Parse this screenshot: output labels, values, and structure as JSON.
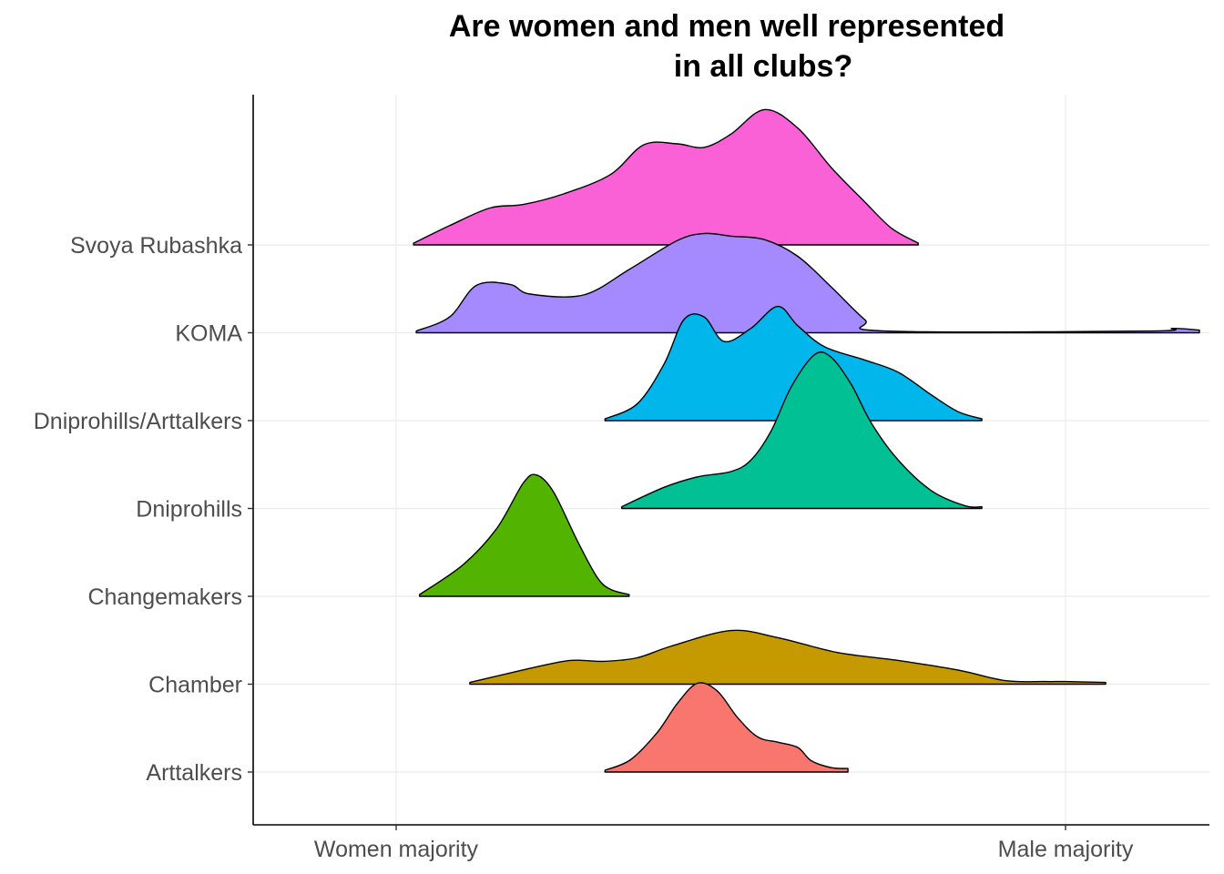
{
  "chart_data": {
    "type": "ridgeline-density",
    "title_lines": [
      "Are women and men well represented",
      "in all clubs?"
    ],
    "xlabel": "",
    "ylabel": "",
    "x_tick_labels": [
      "Women majority",
      "Male majority"
    ],
    "xlim": [
      -0.2,
      1.2
    ],
    "grid": true,
    "legend": "none",
    "categories": [
      "Arttalkers",
      "Chamber",
      "Changemakers",
      "Dniprohills",
      "Dniprohills/Arttalkers",
      "KOMA",
      "Svoya Rubashka"
    ],
    "series": [
      {
        "name": "Arttalkers",
        "color": "#F8766D",
        "curve": [
          [
            0.312,
            0.02
          ],
          [
            0.35,
            0.14
          ],
          [
            0.39,
            0.45
          ],
          [
            0.42,
            0.78
          ],
          [
            0.45,
            1.01
          ],
          [
            0.48,
            0.92
          ],
          [
            0.51,
            0.62
          ],
          [
            0.54,
            0.4
          ],
          [
            0.57,
            0.34
          ],
          [
            0.6,
            0.28
          ],
          [
            0.62,
            0.13
          ],
          [
            0.65,
            0.05
          ],
          [
            0.675,
            0.04
          ]
        ]
      },
      {
        "name": "Chamber",
        "color": "#C49A00",
        "curve": [
          [
            0.11,
            0.02
          ],
          [
            0.2,
            0.18
          ],
          [
            0.26,
            0.27
          ],
          [
            0.31,
            0.26
          ],
          [
            0.36,
            0.3
          ],
          [
            0.41,
            0.43
          ],
          [
            0.5,
            0.61
          ],
          [
            0.57,
            0.53
          ],
          [
            0.66,
            0.36
          ],
          [
            0.75,
            0.27
          ],
          [
            0.84,
            0.16
          ],
          [
            0.91,
            0.04
          ],
          [
            0.97,
            0.03
          ],
          [
            1.0,
            0.03
          ],
          [
            1.06,
            0.02
          ]
        ]
      },
      {
        "name": "Changemakers",
        "color": "#53B400",
        "curve": [
          [
            0.035,
            0.02
          ],
          [
            0.1,
            0.36
          ],
          [
            0.15,
            0.77
          ],
          [
            0.19,
            1.29
          ],
          [
            0.21,
            1.38
          ],
          [
            0.235,
            1.19
          ],
          [
            0.27,
            0.64
          ],
          [
            0.3,
            0.22
          ],
          [
            0.32,
            0.08
          ],
          [
            0.348,
            0.02
          ]
        ]
      },
      {
        "name": "Dniprohills",
        "color": "#00C094",
        "curve": [
          [
            0.337,
            0.02
          ],
          [
            0.4,
            0.24
          ],
          [
            0.45,
            0.36
          ],
          [
            0.5,
            0.42
          ],
          [
            0.53,
            0.55
          ],
          [
            0.56,
            0.88
          ],
          [
            0.59,
            1.38
          ],
          [
            0.625,
            1.75
          ],
          [
            0.65,
            1.72
          ],
          [
            0.68,
            1.41
          ],
          [
            0.71,
            0.97
          ],
          [
            0.75,
            0.55
          ],
          [
            0.8,
            0.2
          ],
          [
            0.85,
            0.03
          ],
          [
            0.875,
            0.02
          ]
        ]
      },
      {
        "name": "Dniprohills/Arttalkers",
        "color": "#00B6EB",
        "curve": [
          [
            0.312,
            0.02
          ],
          [
            0.36,
            0.19
          ],
          [
            0.4,
            0.64
          ],
          [
            0.43,
            1.15
          ],
          [
            0.46,
            1.18
          ],
          [
            0.49,
            0.9
          ],
          [
            0.53,
            1.05
          ],
          [
            0.57,
            1.3
          ],
          [
            0.6,
            1.08
          ],
          [
            0.64,
            0.84
          ],
          [
            0.7,
            0.69
          ],
          [
            0.75,
            0.55
          ],
          [
            0.8,
            0.29
          ],
          [
            0.84,
            0.1
          ],
          [
            0.875,
            0.02
          ]
        ]
      },
      {
        "name": "KOMA",
        "color": "#A58AFF",
        "curve": [
          [
            0.03,
            0.02
          ],
          [
            0.08,
            0.18
          ],
          [
            0.12,
            0.54
          ],
          [
            0.17,
            0.55
          ],
          [
            0.2,
            0.44
          ],
          [
            0.28,
            0.43
          ],
          [
            0.35,
            0.73
          ],
          [
            0.42,
            1.05
          ],
          [
            0.46,
            1.13
          ],
          [
            0.5,
            1.1
          ],
          [
            0.55,
            1.06
          ],
          [
            0.6,
            0.87
          ],
          [
            0.65,
            0.52
          ],
          [
            0.7,
            0.15
          ],
          [
            0.73,
            0.02
          ],
          [
            1.125,
            0.02
          ],
          [
            1.16,
            0.05
          ],
          [
            1.2,
            0.03
          ]
        ]
      },
      {
        "name": "Svoya Rubashka",
        "color": "#FB61D7",
        "curve": [
          [
            0.026,
            0.02
          ],
          [
            0.08,
            0.22
          ],
          [
            0.14,
            0.42
          ],
          [
            0.19,
            0.46
          ],
          [
            0.25,
            0.58
          ],
          [
            0.32,
            0.8
          ],
          [
            0.37,
            1.14
          ],
          [
            0.42,
            1.15
          ],
          [
            0.46,
            1.11
          ],
          [
            0.5,
            1.26
          ],
          [
            0.55,
            1.54
          ],
          [
            0.6,
            1.33
          ],
          [
            0.65,
            0.88
          ],
          [
            0.7,
            0.49
          ],
          [
            0.74,
            0.19
          ],
          [
            0.78,
            0.02
          ]
        ]
      }
    ]
  }
}
